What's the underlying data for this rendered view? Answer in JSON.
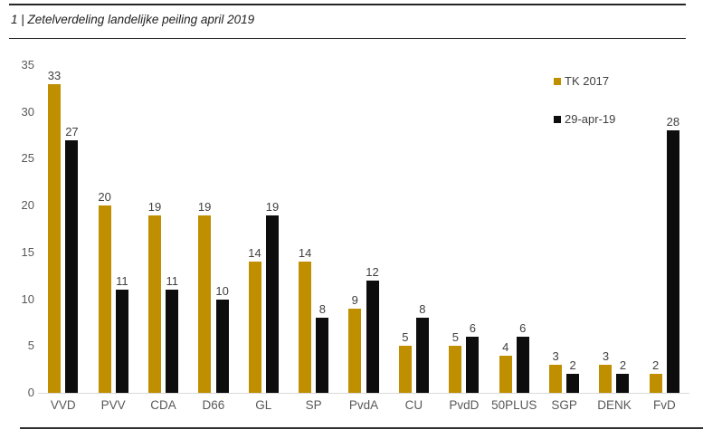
{
  "header": {
    "title": "1 | Zetelverdeling landelijke peiling april 2019"
  },
  "chart_data": {
    "type": "bar",
    "title": "1 | Zetelverdeling landelijke peiling april 2019",
    "categories": [
      "VVD",
      "PVV",
      "CDA",
      "D66",
      "GL",
      "SP",
      "PvdA",
      "CU",
      "PvdD",
      "50PLUS",
      "SGP",
      "DENK",
      "FvD"
    ],
    "series": [
      {
        "name": "TK 2017",
        "color": "#BF8F00",
        "values": [
          33,
          20,
          19,
          19,
          14,
          14,
          9,
          5,
          5,
          4,
          3,
          3,
          2
        ]
      },
      {
        "name": "29-apr-19",
        "color": "#0D0D0D",
        "values": [
          27,
          11,
          11,
          10,
          19,
          8,
          12,
          8,
          6,
          6,
          2,
          2,
          28
        ]
      }
    ],
    "xlabel": "",
    "ylabel": "",
    "ylim": [
      0,
      35
    ],
    "yticks": [
      0,
      5,
      10,
      15,
      20,
      25,
      30,
      35
    ],
    "grid": false,
    "data_labels": true,
    "legend_position": "top-right"
  },
  "colors": {
    "gold_series": "#BF8F00",
    "black_series": "#0D0D0D",
    "axis_line": "#D9D9D9",
    "tick_label": "#595959",
    "value_label": "#404040",
    "rule": "#262626"
  }
}
